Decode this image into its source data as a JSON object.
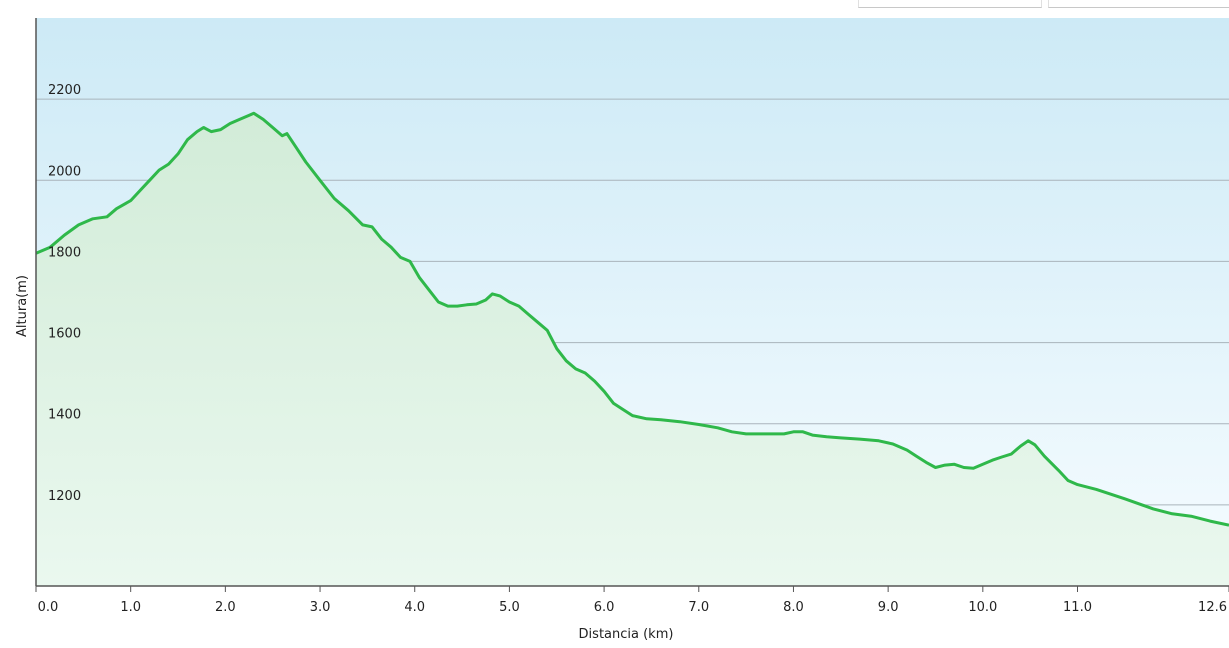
{
  "chart_data": {
    "type": "area",
    "title": "",
    "xlabel": "Distancia  (km)",
    "ylabel": "Altura(m)",
    "xlim": [
      0,
      12.6
    ],
    "ylim": [
      1000,
      2400
    ],
    "x_ticks": [
      0.0,
      1.0,
      2.0,
      3.0,
      4.0,
      5.0,
      6.0,
      7.0,
      8.0,
      9.0,
      10.0,
      11.0,
      12.6
    ],
    "x_tick_labels": [
      "0.0",
      "1.0",
      "2.0",
      "3.0",
      "4.0",
      "5.0",
      "6.0",
      "7.0",
      "8.0",
      "9.0",
      "10.0",
      "11.0",
      "12.6"
    ],
    "y_ticks": [
      1200,
      1400,
      1600,
      1800,
      2000,
      2200
    ],
    "y_tick_labels": [
      "1200",
      "1400",
      "1600",
      "1800",
      "2000",
      "2200"
    ],
    "grid": "horizontal",
    "colors": {
      "line": "#2fb84a",
      "fill_top": "#d2ecd8",
      "fill_bottom": "#eaf8ef",
      "bg_top": "#cdeaf6",
      "bg_bottom": "#f6fcff",
      "grid": "#a9b4bb",
      "axis": "#555555"
    },
    "series": [
      {
        "x": [
          0.0,
          0.15,
          0.3,
          0.45,
          0.6,
          0.75,
          0.85,
          1.0,
          1.1,
          1.2,
          1.3,
          1.4,
          1.5,
          1.6,
          1.7,
          1.77,
          1.85,
          1.95,
          2.05,
          2.15,
          2.25,
          2.3,
          2.4,
          2.5,
          2.6,
          2.65,
          2.75,
          2.85,
          3.0,
          3.15,
          3.3,
          3.45,
          3.55,
          3.65,
          3.75,
          3.85,
          3.95,
          4.05,
          4.15,
          4.25,
          4.35,
          4.45,
          4.55,
          4.65,
          4.75,
          4.82,
          4.9,
          5.0,
          5.1,
          5.2,
          5.3,
          5.4,
          5.5,
          5.6,
          5.7,
          5.8,
          5.9,
          6.0,
          6.1,
          6.2,
          6.3,
          6.45,
          6.6,
          6.8,
          7.0,
          7.2,
          7.35,
          7.5,
          7.7,
          7.9,
          8.0,
          8.1,
          8.2,
          8.35,
          8.5,
          8.7,
          8.9,
          9.05,
          9.2,
          9.3,
          9.4,
          9.5,
          9.6,
          9.7,
          9.8,
          9.9,
          10.0,
          10.1,
          10.2,
          10.3,
          10.4,
          10.48,
          10.55,
          10.65,
          10.8,
          10.9,
          11.0,
          11.2,
          11.5,
          11.8,
          12.0,
          12.2,
          12.4,
          12.6
        ],
        "y": [
          1820,
          1835,
          1865,
          1890,
          1905,
          1910,
          1930,
          1950,
          1975,
          2000,
          2025,
          2040,
          2065,
          2100,
          2120,
          2130,
          2120,
          2125,
          2140,
          2150,
          2160,
          2165,
          2150,
          2130,
          2110,
          2115,
          2080,
          2045,
          2000,
          1955,
          1925,
          1890,
          1885,
          1855,
          1835,
          1810,
          1800,
          1760,
          1730,
          1700,
          1690,
          1690,
          1693,
          1695,
          1705,
          1720,
          1715,
          1700,
          1690,
          1670,
          1650,
          1630,
          1585,
          1555,
          1535,
          1525,
          1505,
          1480,
          1450,
          1435,
          1420,
          1412,
          1410,
          1405,
          1398,
          1390,
          1380,
          1375,
          1375,
          1375,
          1380,
          1380,
          1372,
          1368,
          1365,
          1362,
          1358,
          1350,
          1335,
          1320,
          1305,
          1292,
          1298,
          1300,
          1292,
          1290,
          1300,
          1310,
          1318,
          1325,
          1345,
          1358,
          1348,
          1320,
          1285,
          1260,
          1250,
          1238,
          1215,
          1190,
          1178,
          1172,
          1160,
          1150
        ]
      }
    ]
  }
}
